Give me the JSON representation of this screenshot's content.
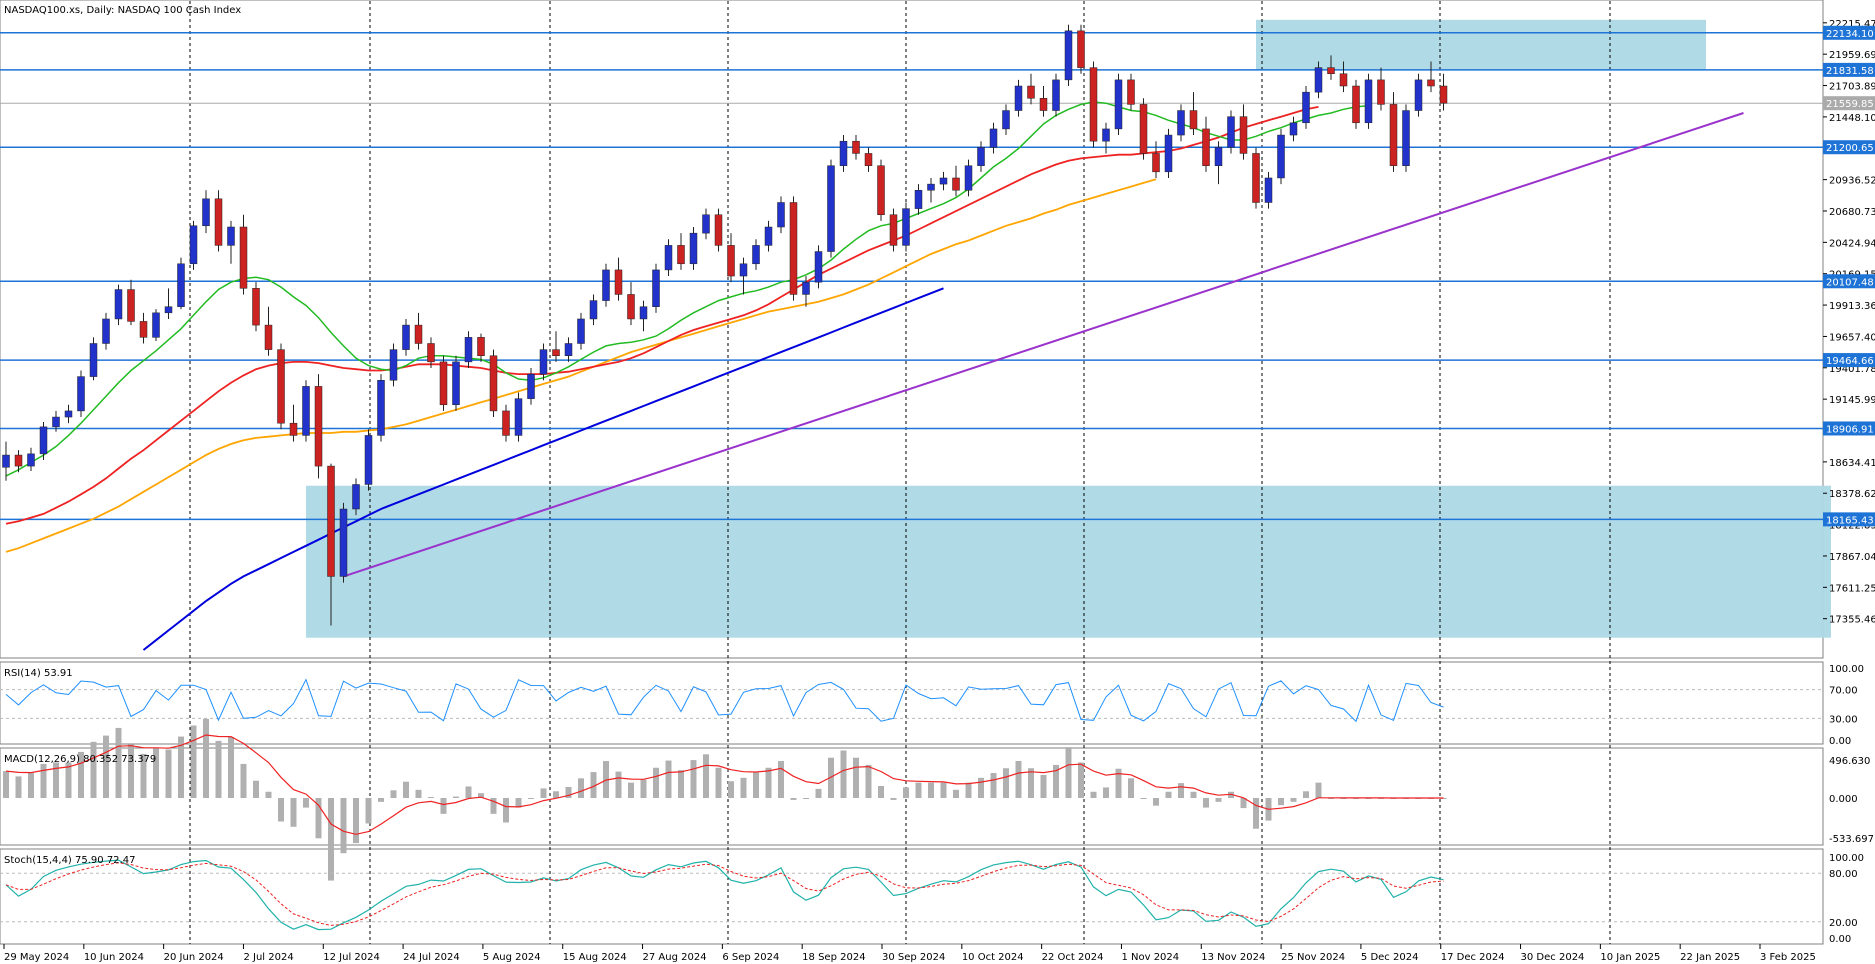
{
  "chart_data": {
    "type": "candlestick",
    "title": "NASDAQ100.xs, Daily:  NASDAQ 100 Cash Index",
    "price_axis_ticks": [
      "22215.47",
      "21959.69",
      "21703.89",
      "21448.10",
      "21192.31",
      "20936.52",
      "20680.73",
      "20424.94",
      "20169.15",
      "19913.36",
      "19657.40",
      "19401.78",
      "19145.99",
      "18890.20",
      "18634.41",
      "18378.62",
      "18122.83",
      "17867.04",
      "17611.25",
      "17355.46"
    ],
    "ylim": [
      17100,
      22320
    ],
    "x_labels": [
      "29 May 2024",
      "10 Jun 2024",
      "20 Jun 2024",
      "2 Jul 2024",
      "12 Jul 2024",
      "24 Jul 2024",
      "5 Aug 2024",
      "15 Aug 2024",
      "27 Aug 2024",
      "6 Sep 2024",
      "18 Sep 2024",
      "30 Sep 2024",
      "10 Oct 2024",
      "22 Oct 2024",
      "1 Nov 2024",
      "13 Nov 2024",
      "25 Nov 2024",
      "5 Dec 2024",
      "17 Dec 2024",
      "30 Dec 2024",
      "10 Jan 2025",
      "22 Jan 2025",
      "3 Feb 2025"
    ],
    "horizontal_levels": [
      {
        "value": 22134.1,
        "label": "22134.10"
      },
      {
        "value": 21831.58,
        "label": "21831.58"
      },
      {
        "value": 21200.65,
        "label": "21200.65"
      },
      {
        "value": 20107.48,
        "label": "20107.48"
      },
      {
        "value": 19464.66,
        "label": "19464.66"
      },
      {
        "value": 18906.91,
        "label": "18906.91"
      },
      {
        "value": 18165.43,
        "label": "18165.43"
      }
    ],
    "current_price": {
      "value": 21559.85,
      "label": "21559.85"
    },
    "zones": [
      {
        "from_bar": 100,
        "to_bar": 136,
        "low": 21831.58,
        "high": 22240
      },
      {
        "from_bar": 24,
        "to_bar": 146,
        "low": 17200,
        "high": 18440
      }
    ],
    "trendline": {
      "from_bar": 27,
      "from_value": 17700,
      "to_bar": 139,
      "to_value": 21480
    },
    "series_colors": {
      "ma_fast": "#22bb22",
      "ma_mid": "#ee2222",
      "ma_slow": "#ffa500",
      "ma_long": "#0000dd",
      "bull": "#2233cc",
      "bear": "#cc2222",
      "trend": "#9933cc",
      "level": "#1e73d6",
      "zone": "#add8e6"
    },
    "candles": [
      [
        18590,
        18800,
        18480,
        18690
      ],
      [
        18690,
        18730,
        18550,
        18600
      ],
      [
        18600,
        18750,
        18560,
        18700
      ],
      [
        18700,
        18960,
        18650,
        18920
      ],
      [
        18920,
        19050,
        18880,
        19000
      ],
      [
        19000,
        19100,
        18950,
        19050
      ],
      [
        19050,
        19380,
        19000,
        19330
      ],
      [
        19330,
        19650,
        19300,
        19600
      ],
      [
        19600,
        19850,
        19550,
        19800
      ],
      [
        19800,
        20080,
        19750,
        20040
      ],
      [
        20040,
        20120,
        19750,
        19780
      ],
      [
        19780,
        19850,
        19600,
        19650
      ],
      [
        19650,
        19880,
        19620,
        19850
      ],
      [
        19850,
        20050,
        19800,
        19900
      ],
      [
        19900,
        20300,
        19880,
        20250
      ],
      [
        20250,
        20600,
        20200,
        20560
      ],
      [
        20560,
        20850,
        20500,
        20780
      ],
      [
        20780,
        20850,
        20350,
        20400
      ],
      [
        20400,
        20600,
        20250,
        20550
      ],
      [
        20550,
        20650,
        20000,
        20050
      ],
      [
        20050,
        20100,
        19700,
        19750
      ],
      [
        19750,
        19900,
        19500,
        19550
      ],
      [
        19550,
        19600,
        18900,
        18950
      ],
      [
        18950,
        19100,
        18800,
        18850
      ],
      [
        18850,
        19300,
        18800,
        19250
      ],
      [
        19250,
        19350,
        18500,
        18600
      ],
      [
        18600,
        18620,
        17300,
        17700
      ],
      [
        17700,
        18300,
        17650,
        18250
      ],
      [
        18250,
        18500,
        18200,
        18450
      ],
      [
        18450,
        18900,
        18400,
        18850
      ],
      [
        18850,
        19350,
        18800,
        19300
      ],
      [
        19300,
        19600,
        19250,
        19550
      ],
      [
        19550,
        19800,
        19500,
        19750
      ],
      [
        19750,
        19850,
        19550,
        19600
      ],
      [
        19600,
        19650,
        19400,
        19450
      ],
      [
        19450,
        19500,
        19050,
        19100
      ],
      [
        19100,
        19500,
        19050,
        19450
      ],
      [
        19450,
        19700,
        19400,
        19650
      ],
      [
        19650,
        19680,
        19450,
        19500
      ],
      [
        19500,
        19550,
        19000,
        19050
      ],
      [
        19050,
        19100,
        18800,
        18850
      ],
      [
        18850,
        19200,
        18800,
        19150
      ],
      [
        19150,
        19400,
        19100,
        19350
      ],
      [
        19350,
        19600,
        19300,
        19550
      ],
      [
        19550,
        19700,
        19450,
        19500
      ],
      [
        19500,
        19650,
        19450,
        19600
      ],
      [
        19600,
        19850,
        19550,
        19800
      ],
      [
        19800,
        20000,
        19750,
        19950
      ],
      [
        19950,
        20250,
        19900,
        20200
      ],
      [
        20200,
        20300,
        19950,
        20000
      ],
      [
        20000,
        20100,
        19750,
        19800
      ],
      [
        19800,
        19950,
        19700,
        19900
      ],
      [
        19900,
        20250,
        19850,
        20200
      ],
      [
        20200,
        20450,
        20150,
        20400
      ],
      [
        20400,
        20500,
        20200,
        20250
      ],
      [
        20250,
        20550,
        20200,
        20500
      ],
      [
        20500,
        20700,
        20450,
        20650
      ],
      [
        20650,
        20700,
        20350,
        20400
      ],
      [
        20400,
        20500,
        20100,
        20150
      ],
      [
        20150,
        20300,
        20000,
        20250
      ],
      [
        20250,
        20450,
        20200,
        20400
      ],
      [
        20400,
        20600,
        20350,
        20550
      ],
      [
        20550,
        20800,
        20500,
        20750
      ],
      [
        20750,
        20800,
        19950,
        20000
      ],
      [
        20000,
        20150,
        19900,
        20100
      ],
      [
        20100,
        20400,
        20050,
        20350
      ],
      [
        20350,
        21100,
        20300,
        21050
      ],
      [
        21050,
        21300,
        21000,
        21250
      ],
      [
        21250,
        21300,
        21100,
        21150
      ],
      [
        21150,
        21200,
        21000,
        21050
      ],
      [
        21050,
        21100,
        20600,
        20650
      ],
      [
        20650,
        20700,
        20350,
        20400
      ],
      [
        20400,
        20750,
        20350,
        20700
      ],
      [
        20700,
        20900,
        20650,
        20850
      ],
      [
        20850,
        20950,
        20750,
        20900
      ],
      [
        20900,
        21000,
        20850,
        20950
      ],
      [
        20950,
        21050,
        20800,
        20850
      ],
      [
        20850,
        21100,
        20800,
        21050
      ],
      [
        21050,
        21250,
        21000,
        21200
      ],
      [
        21200,
        21400,
        21150,
        21350
      ],
      [
        21350,
        21550,
        21300,
        21500
      ],
      [
        21500,
        21750,
        21450,
        21700
      ],
      [
        21700,
        21800,
        21550,
        21600
      ],
      [
        21600,
        21700,
        21450,
        21500
      ],
      [
        21500,
        21800,
        21450,
        21750
      ],
      [
        21750,
        22200,
        21700,
        22150
      ],
      [
        22150,
        22200,
        21800,
        21850
      ],
      [
        21850,
        21900,
        21200,
        21250
      ],
      [
        21250,
        21400,
        21150,
        21350
      ],
      [
        21350,
        21800,
        21300,
        21750
      ],
      [
        21750,
        21800,
        21500,
        21550
      ],
      [
        21550,
        21600,
        21100,
        21150
      ],
      [
        21150,
        21250,
        20950,
        21000
      ],
      [
        21000,
        21350,
        20950,
        21300
      ],
      [
        21300,
        21550,
        21250,
        21500
      ],
      [
        21500,
        21650,
        21300,
        21350
      ],
      [
        21350,
        21450,
        21000,
        21050
      ],
      [
        21050,
        21250,
        20900,
        21200
      ],
      [
        21200,
        21500,
        21150,
        21450
      ],
      [
        21450,
        21550,
        21100,
        21150
      ],
      [
        21150,
        21200,
        20700,
        20750
      ],
      [
        20750,
        21000,
        20700,
        20950
      ],
      [
        20950,
        21350,
        20900,
        21300
      ],
      [
        21300,
        21450,
        21250,
        21400
      ],
      [
        21400,
        21700,
        21350,
        21650
      ],
      [
        21650,
        21900,
        21600,
        21850
      ],
      [
        21850,
        21950,
        21750,
        21800
      ],
      [
        21800,
        21900,
        21650,
        21700
      ],
      [
        21700,
        21750,
        21350,
        21400
      ],
      [
        21400,
        21800,
        21350,
        21750
      ],
      [
        21750,
        21850,
        21500,
        21550
      ],
      [
        21550,
        21650,
        21000,
        21050
      ],
      [
        21050,
        21550,
        21000,
        21500
      ],
      [
        21500,
        21800,
        21450,
        21750
      ],
      [
        21750,
        21900,
        21650,
        21700
      ],
      [
        21700,
        21800,
        21500,
        21560
      ]
    ],
    "ma_fast": [
      18520,
      18570,
      18630,
      18690,
      18760,
      18850,
      18950,
      19060,
      19170,
      19280,
      19380,
      19460,
      19540,
      19630,
      19720,
      19830,
      19940,
      20040,
      20100,
      20130,
      20140,
      20120,
      20060,
      19980,
      19910,
      19810,
      19690,
      19580,
      19480,
      19420,
      19390,
      19380,
      19420,
      19480,
      19500,
      19500,
      19490,
      19480,
      19470,
      19430,
      19360,
      19310,
      19300,
      19320,
      19360,
      19410,
      19470,
      19530,
      19580,
      19600,
      19610,
      19630,
      19660,
      19720,
      19790,
      19850,
      19900,
      19950,
      19980,
      20010,
      20030,
      20060,
      20100,
      20120,
      20160,
      20210,
      20280,
      20370,
      20450,
      20520,
      20560,
      20580,
      20620,
      20660,
      20700,
      20740,
      20790,
      20860,
      20950,
      21040,
      21110,
      21190,
      21290,
      21390,
      21460,
      21510,
      21550,
      21570,
      21560,
      21530,
      21500,
      21490,
      21460,
      21420,
      21390,
      21360,
      21320,
      21290,
      21260,
      21260,
      21290,
      21330,
      21360,
      21400,
      21430,
      21460,
      21480,
      21510,
      21530,
      21540
    ],
    "ma_mid": [
      18130,
      18150,
      18180,
      18210,
      18260,
      18310,
      18370,
      18430,
      18500,
      18580,
      18660,
      18730,
      18810,
      18890,
      18970,
      19050,
      19130,
      19210,
      19280,
      19340,
      19390,
      19420,
      19440,
      19450,
      19450,
      19440,
      19420,
      19400,
      19390,
      19380,
      19380,
      19390,
      19410,
      19430,
      19430,
      19430,
      19420,
      19410,
      19400,
      19380,
      19360,
      19350,
      19350,
      19350,
      19360,
      19370,
      19390,
      19410,
      19430,
      19450,
      19480,
      19520,
      19570,
      19620,
      19670,
      19710,
      19740,
      19770,
      19800,
      19830,
      19870,
      19920,
      19980,
      20040,
      20100,
      20160,
      20210,
      20260,
      20310,
      20360,
      20400,
      20440,
      20480,
      20530,
      20580,
      20630,
      20680,
      20730,
      20780,
      20830,
      20880,
      20930,
      20980,
      21020,
      21060,
      21090,
      21110,
      21120,
      21130,
      21140,
      21140,
      21150,
      21160,
      21170,
      21190,
      21220,
      21250,
      21280,
      21320,
      21360,
      21390,
      21420,
      21450,
      21480,
      21510,
      21530
    ],
    "ma_slow": [
      17900,
      17930,
      17970,
      18010,
      18050,
      18090,
      18130,
      18170,
      18220,
      18270,
      18330,
      18390,
      18450,
      18510,
      18570,
      18630,
      18690,
      18740,
      18780,
      18810,
      18830,
      18840,
      18850,
      18860,
      18870,
      18870,
      18870,
      18880,
      18880,
      18890,
      18900,
      18920,
      18940,
      18970,
      19000,
      19030,
      19060,
      19090,
      19120,
      19150,
      19180,
      19210,
      19240,
      19270,
      19300,
      19330,
      19370,
      19410,
      19450,
      19490,
      19530,
      19560,
      19590,
      19620,
      19650,
      19680,
      19710,
      19740,
      19770,
      19800,
      19830,
      19860,
      19880,
      19900,
      19920,
      19940,
      19970,
      20000,
      20040,
      20080,
      20130,
      20180,
      20230,
      20280,
      20330,
      20370,
      20410,
      20440,
      20480,
      20520,
      20560,
      20590,
      20620,
      20660,
      20690,
      20730,
      20760,
      20790,
      20820,
      20850,
      20880,
      20910,
      20940
    ],
    "ma_long": [
      17100,
      17180,
      17260,
      17340,
      17420,
      17500,
      17570,
      17640,
      17700,
      17750,
      17800,
      17850,
      17900,
      17950,
      18000,
      18050,
      18100,
      18150,
      18200,
      18250,
      18290,
      18330,
      18370,
      18410,
      18450,
      18490,
      18530,
      18570,
      18610,
      18650,
      18690,
      18730,
      18770,
      18810,
      18850,
      18890,
      18930,
      18970,
      19010,
      19050,
      19090,
      19130,
      19170,
      19210,
      19250,
      19290,
      19330,
      19370,
      19410,
      19450,
      19490,
      19530,
      19570,
      19610,
      19650,
      19690,
      19730,
      19770,
      19810,
      19850,
      19890,
      19930,
      19970,
      20010,
      20050
    ],
    "rsi": {
      "label": "RSI(14) 53.91",
      "levels": [
        70,
        30
      ],
      "ticks": [
        "100.00",
        "70.00",
        "30.00",
        "0.00"
      ]
    },
    "macd": {
      "label": "MACD(12,26,9) 80.352 73.379",
      "ticks": [
        "496.630",
        "0.000",
        "-533.697"
      ]
    },
    "stoch": {
      "label": "Stoch(15,4,4) 75.90 72.47",
      "levels": [
        80,
        20
      ],
      "ticks": [
        "100.00",
        "80.00",
        "20.00",
        "0.00"
      ]
    }
  }
}
